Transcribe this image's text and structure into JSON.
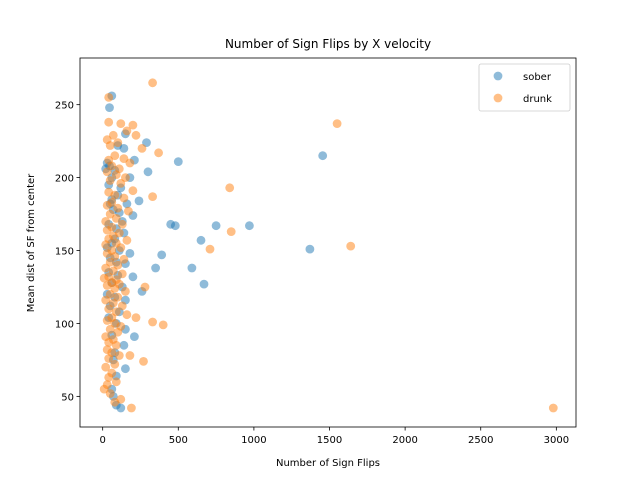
{
  "chart_data": {
    "type": "scatter",
    "title": "Number of Sign Flips by X velocity",
    "xlabel": "Number of Sign Flips",
    "ylabel": "Mean dist of SF from center",
    "xlim": [
      -150,
      3130
    ],
    "ylim": [
      29,
      282
    ],
    "xticks": [
      0,
      500,
      1000,
      1500,
      2000,
      2500,
      3000
    ],
    "yticks": [
      50,
      100,
      150,
      200,
      250
    ],
    "grid": false,
    "legend_position": "top-right",
    "series": [
      {
        "name": "sober",
        "color": "#1f77b4",
        "points": [
          [
            60,
            256
          ],
          [
            45,
            248
          ],
          [
            100,
            222
          ],
          [
            150,
            230
          ],
          [
            140,
            220
          ],
          [
            210,
            212
          ],
          [
            290,
            224
          ],
          [
            500,
            211
          ],
          [
            1455,
            215
          ],
          [
            30,
            210
          ],
          [
            45,
            208
          ],
          [
            20,
            206
          ],
          [
            80,
            205
          ],
          [
            60,
            200
          ],
          [
            120,
            193
          ],
          [
            180,
            200
          ],
          [
            300,
            204
          ],
          [
            40,
            195
          ],
          [
            100,
            188
          ],
          [
            60,
            185
          ],
          [
            160,
            182
          ],
          [
            240,
            184
          ],
          [
            50,
            182
          ],
          [
            70,
            178
          ],
          [
            110,
            176
          ],
          [
            200,
            174
          ],
          [
            130,
            170
          ],
          [
            40,
            168
          ],
          [
            90,
            165
          ],
          [
            140,
            162
          ],
          [
            80,
            158
          ],
          [
            450,
            168
          ],
          [
            480,
            167
          ],
          [
            750,
            167
          ],
          [
            970,
            167
          ],
          [
            650,
            157
          ],
          [
            60,
            155
          ],
          [
            30,
            152
          ],
          [
            110,
            150
          ],
          [
            180,
            148
          ],
          [
            390,
            147
          ],
          [
            1370,
            151
          ],
          [
            50,
            145
          ],
          [
            90,
            142
          ],
          [
            150,
            141
          ],
          [
            350,
            138
          ],
          [
            590,
            138
          ],
          [
            40,
            135
          ],
          [
            100,
            133
          ],
          [
            200,
            132
          ],
          [
            670,
            127
          ],
          [
            60,
            128
          ],
          [
            130,
            125
          ],
          [
            260,
            122
          ],
          [
            30,
            120
          ],
          [
            80,
            118
          ],
          [
            150,
            116
          ],
          [
            50,
            112
          ],
          [
            110,
            108
          ],
          [
            40,
            104
          ],
          [
            90,
            100
          ],
          [
            150,
            96
          ],
          [
            60,
            92
          ],
          [
            210,
            91
          ],
          [
            140,
            85
          ],
          [
            80,
            80
          ],
          [
            70,
            75
          ],
          [
            150,
            69
          ],
          [
            90,
            64
          ],
          [
            60,
            55
          ],
          [
            70,
            50
          ],
          [
            90,
            44
          ],
          [
            120,
            42
          ]
        ]
      },
      {
        "name": "drunk",
        "color": "#ff7f0e",
        "points": [
          [
            330,
            265
          ],
          [
            40,
            255
          ],
          [
            1550,
            237
          ],
          [
            40,
            238
          ],
          [
            120,
            237
          ],
          [
            200,
            236
          ],
          [
            160,
            232
          ],
          [
            220,
            229
          ],
          [
            70,
            229
          ],
          [
            30,
            226
          ],
          [
            100,
            224
          ],
          [
            50,
            222
          ],
          [
            260,
            220
          ],
          [
            370,
            217
          ],
          [
            80,
            215
          ],
          [
            140,
            213
          ],
          [
            40,
            212
          ],
          [
            180,
            210
          ],
          [
            60,
            208
          ],
          [
            110,
            206
          ],
          [
            30,
            204
          ],
          [
            90,
            202
          ],
          [
            150,
            200
          ],
          [
            50,
            198
          ],
          [
            120,
            196
          ],
          [
            840,
            193
          ],
          [
            200,
            191
          ],
          [
            40,
            190
          ],
          [
            80,
            188
          ],
          [
            330,
            187
          ],
          [
            140,
            186
          ],
          [
            60,
            183
          ],
          [
            30,
            181
          ],
          [
            100,
            179
          ],
          [
            170,
            177
          ],
          [
            50,
            175
          ],
          [
            90,
            172
          ],
          [
            20,
            170
          ],
          [
            130,
            168
          ],
          [
            60,
            166
          ],
          [
            30,
            164
          ],
          [
            850,
            163
          ],
          [
            110,
            162
          ],
          [
            70,
            160
          ],
          [
            40,
            158
          ],
          [
            160,
            157
          ],
          [
            90,
            155
          ],
          [
            20,
            154
          ],
          [
            1640,
            153
          ],
          [
            120,
            152
          ],
          [
            710,
            151
          ],
          [
            60,
            150
          ],
          [
            30,
            148
          ],
          [
            80,
            146
          ],
          [
            140,
            144
          ],
          [
            50,
            142
          ],
          [
            100,
            140
          ],
          [
            20,
            138
          ],
          [
            70,
            136
          ],
          [
            130,
            134
          ],
          [
            40,
            132
          ],
          [
            10,
            131
          ],
          [
            90,
            130
          ],
          [
            60,
            128
          ],
          [
            110,
            127
          ],
          [
            30,
            126
          ],
          [
            280,
            125
          ],
          [
            80,
            124
          ],
          [
            150,
            122
          ],
          [
            50,
            120
          ],
          [
            100,
            118
          ],
          [
            20,
            116
          ],
          [
            70,
            114
          ],
          [
            130,
            112
          ],
          [
            40,
            110
          ],
          [
            90,
            108
          ],
          [
            160,
            106
          ],
          [
            60,
            104
          ],
          [
            220,
            104
          ],
          [
            30,
            102
          ],
          [
            80,
            100
          ],
          [
            330,
            101
          ],
          [
            400,
            99
          ],
          [
            120,
            98
          ],
          [
            50,
            96
          ],
          [
            100,
            94
          ],
          [
            20,
            91
          ],
          [
            70,
            89
          ],
          [
            40,
            87
          ],
          [
            90,
            85
          ],
          [
            30,
            82
          ],
          [
            60,
            80
          ],
          [
            110,
            78
          ],
          [
            180,
            78
          ],
          [
            40,
            76
          ],
          [
            270,
            74
          ],
          [
            80,
            72
          ],
          [
            20,
            70
          ],
          [
            60,
            66
          ],
          [
            40,
            63
          ],
          [
            90,
            60
          ],
          [
            30,
            58
          ],
          [
            10,
            55
          ],
          [
            50,
            52
          ],
          [
            120,
            48
          ],
          [
            80,
            46
          ],
          [
            190,
            42
          ],
          [
            2980,
            42
          ]
        ]
      }
    ]
  }
}
